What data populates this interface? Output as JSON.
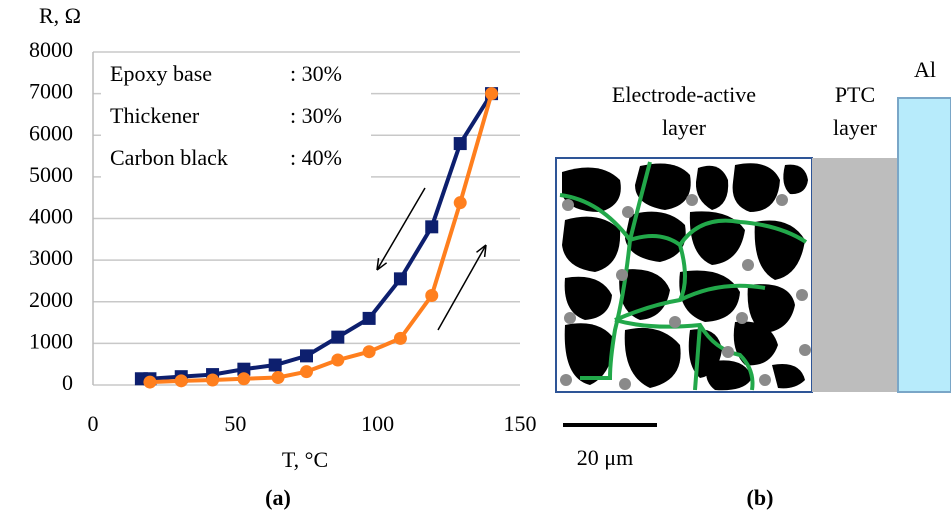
{
  "chart_data": {
    "type": "line",
    "y_label": "R, Ω",
    "x_label": "T, °C",
    "annotations": [
      [
        "Epoxy base",
        ": 30%"
      ],
      [
        "Thickener",
        ": 30%"
      ],
      [
        "Carbon black",
        ": 40%"
      ]
    ],
    "xlim": [
      0,
      150
    ],
    "xticks": [
      0,
      50,
      100,
      150
    ],
    "ylim": [
      0,
      8000
    ],
    "yticks": [
      0,
      1000,
      2000,
      3000,
      4000,
      5000,
      6000,
      7000,
      8000
    ],
    "grid": true,
    "series": [
      {
        "color": "#0d1f6e",
        "marker": "square",
        "x": [
          17,
          20,
          31,
          42,
          53,
          64,
          75,
          86,
          97,
          108,
          119,
          129,
          140
        ],
        "values": [
          150,
          150,
          200,
          250,
          380,
          480,
          700,
          1150,
          1600,
          2550,
          3800,
          5800,
          7000
        ]
      },
      {
        "color": "#ff7f1e",
        "marker": "circle",
        "x": [
          20,
          31,
          42,
          53,
          65,
          75,
          86,
          97,
          108,
          119,
          129,
          140
        ],
        "values": [
          70,
          100,
          120,
          150,
          180,
          320,
          600,
          800,
          1120,
          2150,
          4380,
          7000
        ]
      }
    ],
    "caption": "(a)"
  },
  "diagram": {
    "electrode_label": [
      "Electrode-active",
      "layer"
    ],
    "ptc_label": [
      "PTC",
      "layer"
    ],
    "al_label": "Al",
    "scale_bar": "20 μm",
    "caption": "(b)"
  }
}
